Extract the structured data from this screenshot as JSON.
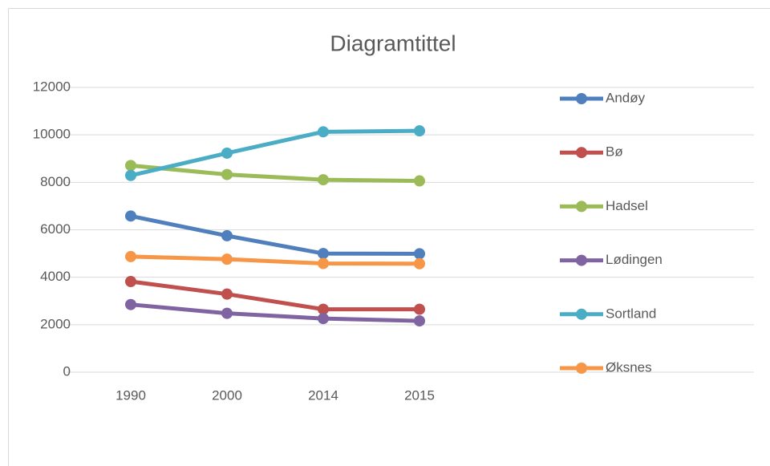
{
  "chart_data": {
    "type": "line",
    "title": "Diagramtittel",
    "categories": [
      "1990",
      "2000",
      "2014",
      "2015"
    ],
    "series": [
      {
        "name": "Andøy",
        "color": "#4f7fbd",
        "values": [
          6580,
          5750,
          5000,
          4990
        ]
      },
      {
        "name": "Bø",
        "color": "#c0504d",
        "values": [
          3820,
          3290,
          2650,
          2650
        ]
      },
      {
        "name": "Hadsel",
        "color": "#9bbb59",
        "values": [
          8710,
          8330,
          8110,
          8060
        ]
      },
      {
        "name": "Lødingen",
        "color": "#8064a2",
        "values": [
          2850,
          2480,
          2260,
          2160
        ]
      },
      {
        "name": "Sortland",
        "color": "#4bacc6",
        "values": [
          8290,
          9230,
          10130,
          10170
        ]
      },
      {
        "name": "Øksnes",
        "color": "#f79646",
        "values": [
          4870,
          4760,
          4580,
          4570
        ]
      }
    ],
    "ylim": [
      0,
      12000
    ],
    "yticks": [
      0,
      2000,
      4000,
      6000,
      8000,
      10000,
      12000
    ],
    "grid": true,
    "legend": "right"
  }
}
